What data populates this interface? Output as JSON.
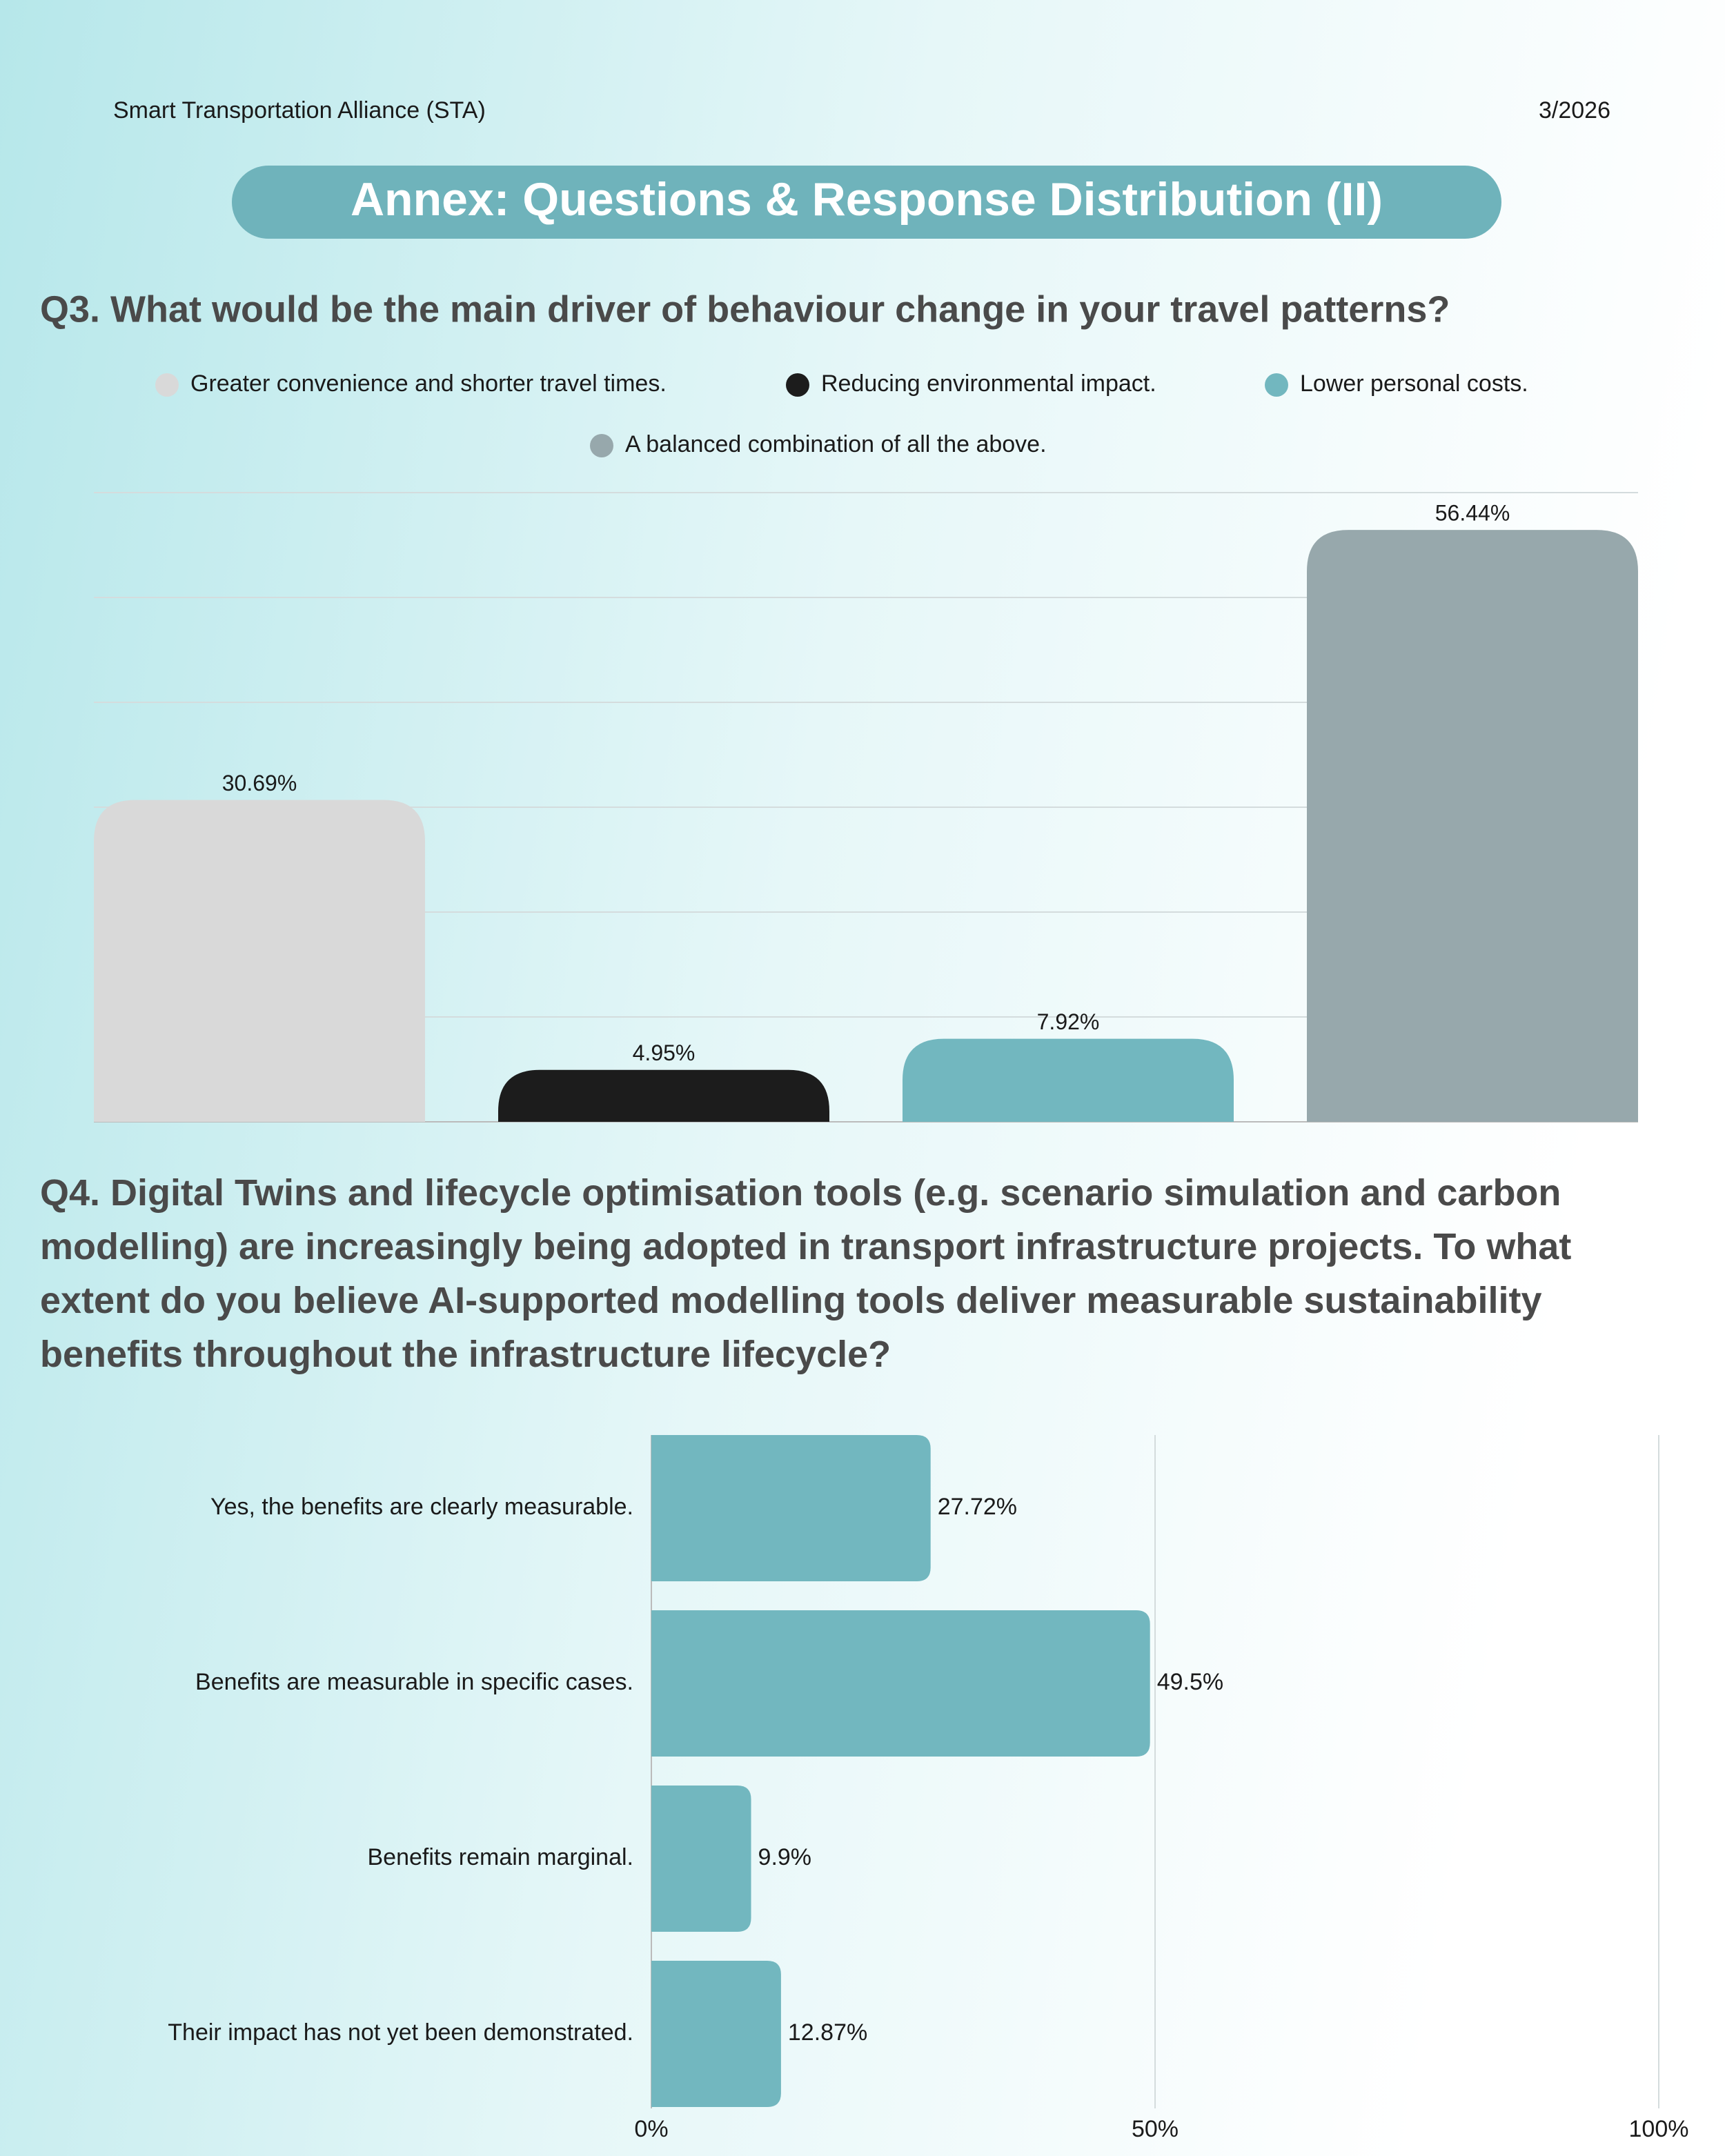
{
  "header": {
    "organization": "Smart Transportation Alliance (STA)",
    "date": "3/2026",
    "title": "Annex: Questions & Response Distribution (II)"
  },
  "chart_data": [
    {
      "type": "bar",
      "title": "Q3. What would be the main driver of behaviour change in your travel patterns?",
      "categories": [
        "Greater convenience and shorter travel times.",
        "Reducing environmental impact.",
        "Lower personal costs.",
        "A balanced combination of all the above."
      ],
      "values": [
        30.69,
        4.95,
        7.92,
        56.44
      ],
      "value_labels": [
        "30.69%",
        "4.95%",
        "7.92%",
        "56.44%"
      ],
      "colors": [
        "#d9d9d9",
        "#1c1c1c",
        "#72b7bf",
        "#97a8ac"
      ],
      "ylim": [
        0,
        60
      ],
      "yticks": [
        0,
        10,
        20,
        30,
        40,
        50,
        60
      ],
      "grid": true,
      "legend": "top"
    },
    {
      "type": "hbar",
      "title": "Q4. Digital Twins and lifecycle optimisation tools (e.g. scenario simulation and carbon modelling) are increasingly being adopted in transport infrastructure projects. To what extent do you believe AI-supported modelling tools deliver measurable sustainability benefits throughout the infrastructure lifecycle?",
      "categories": [
        "Yes, the benefits are clearly measurable.",
        "Benefits are measurable in specific cases.",
        "Benefits remain marginal.",
        "Their impact has not yet been demonstrated."
      ],
      "values": [
        27.72,
        49.5,
        9.9,
        12.87
      ],
      "value_labels": [
        "27.72%",
        "49.5%",
        "9.9%",
        "12.87%"
      ],
      "color": "#72b7bf",
      "xlim": [
        0,
        100
      ],
      "xticks": [
        {
          "value": 0,
          "label": "0%"
        },
        {
          "value": 50,
          "label": "50%"
        },
        {
          "value": 100,
          "label": "100%"
        }
      ],
      "grid": true
    }
  ]
}
